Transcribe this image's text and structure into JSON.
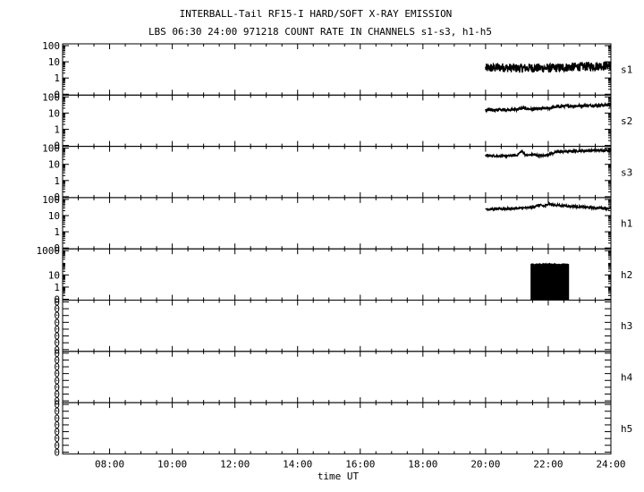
{
  "title": "INTERBALL-Tail RF15-I HARD/SOFT X-RAY EMISSION",
  "subtitle": "LBS 06:30 24:00 971218  COUNT RATE IN CHANNELS s1-s3, h1-h5",
  "chart_data": {
    "type": "line",
    "title": "INTERBALL-Tail RF15-I HARD/SOFT X-RAY EMISSION",
    "subtitle": "LBS 06:30 24:00 971218  COUNT RATE IN CHANNELS s1-s3, h1-h5",
    "xlabel": "time UT",
    "x_unit": "hours UT",
    "xlim": [
      6.5,
      24
    ],
    "x_ticks": [
      8,
      10,
      12,
      14,
      16,
      18,
      20,
      22,
      24
    ],
    "x_tick_labels": [
      "08:00",
      "10:00",
      "12:00",
      "14:00",
      "16:00",
      "18:00",
      "20:00",
      "22:00",
      "24:00"
    ],
    "y_scale": "log",
    "grid": false,
    "legend": "none",
    "panels": [
      {
        "name": "s1",
        "ylim_decades": [
          -1,
          2
        ],
        "tick_labels": [
          "100",
          "10",
          "1",
          "0"
        ],
        "data_range_x": [
          20.0,
          24.0
        ],
        "points": [
          [
            20.0,
            4
          ],
          [
            20.5,
            4.5
          ],
          [
            21.0,
            4
          ],
          [
            21.5,
            4.2
          ],
          [
            22.0,
            4
          ],
          [
            22.5,
            4.5
          ],
          [
            23.0,
            5
          ],
          [
            23.5,
            5.5
          ],
          [
            24.0,
            6
          ]
        ],
        "noise_decades": 0.28
      },
      {
        "name": "s2",
        "ylim_decades": [
          -1,
          2
        ],
        "tick_labels": [
          "100",
          "10",
          "1",
          "0"
        ],
        "data_range_x": [
          20.0,
          24.0
        ],
        "points": [
          [
            20.0,
            15
          ],
          [
            20.5,
            16
          ],
          [
            21.0,
            17
          ],
          [
            21.2,
            20
          ],
          [
            21.5,
            17
          ],
          [
            22.0,
            20
          ],
          [
            22.3,
            25
          ],
          [
            22.6,
            27
          ],
          [
            23.0,
            28
          ],
          [
            23.5,
            30
          ],
          [
            24.0,
            32
          ]
        ],
        "noise_decades": 0.09
      },
      {
        "name": "s3",
        "ylim_decades": [
          -1,
          2
        ],
        "tick_labels": [
          "100",
          "10",
          "1",
          "0"
        ],
        "data_range_x": [
          20.0,
          24.0
        ],
        "points": [
          [
            20.0,
            35
          ],
          [
            20.6,
            32
          ],
          [
            21.0,
            36
          ],
          [
            21.15,
            65
          ],
          [
            21.3,
            35
          ],
          [
            21.5,
            40
          ],
          [
            21.8,
            33
          ],
          [
            22.1,
            45
          ],
          [
            22.3,
            60
          ],
          [
            22.6,
            62
          ],
          [
            23.0,
            68
          ],
          [
            23.5,
            72
          ],
          [
            24.0,
            75
          ]
        ],
        "noise_decades": 0.07
      },
      {
        "name": "h1",
        "ylim_decades": [
          -1,
          2
        ],
        "tick_labels": [
          "100",
          "10",
          "1",
          "0"
        ],
        "data_range_x": [
          20.0,
          24.0
        ],
        "points": [
          [
            20.0,
            25
          ],
          [
            20.5,
            26
          ],
          [
            21.0,
            28
          ],
          [
            21.3,
            30
          ],
          [
            21.5,
            33
          ],
          [
            21.7,
            45
          ],
          [
            21.9,
            38
          ],
          [
            22.0,
            55
          ],
          [
            22.2,
            45
          ],
          [
            22.5,
            40
          ],
          [
            23.0,
            35
          ],
          [
            23.5,
            30
          ],
          [
            24.0,
            28
          ]
        ],
        "noise_decades": 0.07
      },
      {
        "name": "h2",
        "ylim_decades": [
          -1,
          3
        ],
        "tick_labels": [
          "1000",
          "10",
          "1",
          "0"
        ],
        "data_range_x": [
          21.45,
          22.65
        ],
        "points": [
          [
            21.45,
            70
          ],
          [
            21.8,
            75
          ],
          [
            22.0,
            80
          ],
          [
            22.3,
            75
          ],
          [
            22.65,
            72
          ]
        ],
        "fill_to_min": true,
        "noise_decades": 0.05
      },
      {
        "name": "h3",
        "tick_labels": [
          "0",
          "0",
          "0",
          "0",
          "0",
          "0",
          "0",
          "0"
        ],
        "points": []
      },
      {
        "name": "h4",
        "tick_labels": [
          "0",
          "0",
          "0",
          "0",
          "0",
          "0",
          "0",
          "0"
        ],
        "points": []
      },
      {
        "name": "h5",
        "tick_labels": [
          "0",
          "0",
          "0",
          "0",
          "0",
          "0",
          "0",
          "0"
        ],
        "points": []
      }
    ]
  }
}
